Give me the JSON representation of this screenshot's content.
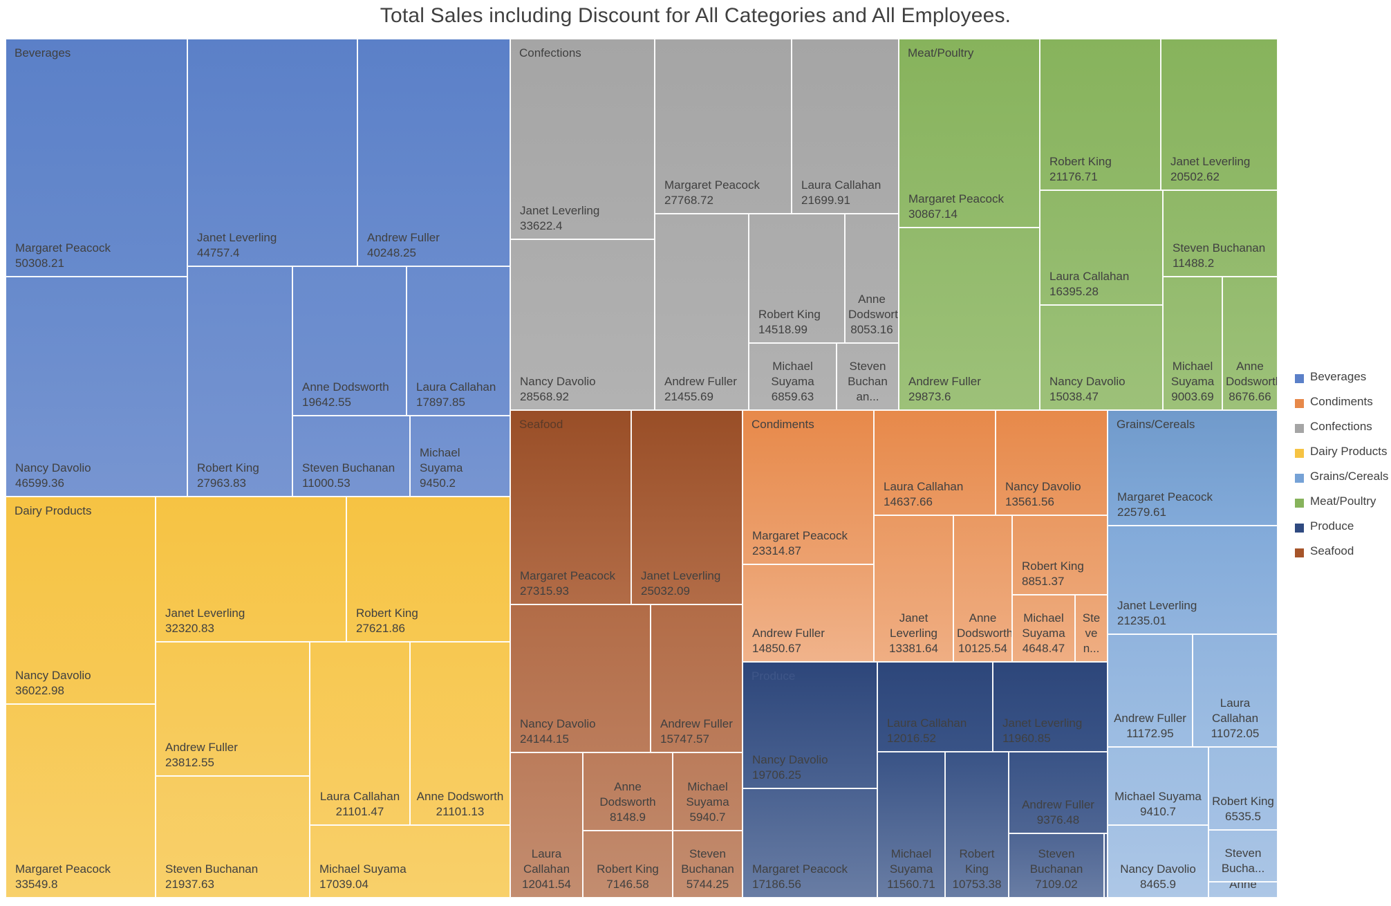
{
  "chart_data": {
    "type": "treemap",
    "title": "Total Sales including Discount for All Categories and All Employees.",
    "legend_position": "right",
    "legend": [
      "Beverages",
      "Condiments",
      "Confections",
      "Dairy Products",
      "Grains/Cereals",
      "Meat/Poultry",
      "Produce",
      "Seafood"
    ],
    "colors": {
      "Beverages": "#5b80c8",
      "Condiments": "#e7894a",
      "Confections": "#a5a5a5",
      "Dairy Products": "#f6c343",
      "Grains/Cereals": "#76a2d6",
      "Meat/Poultry": "#87b35c",
      "Produce": "#2f4a80",
      "Seafood": "#a6552a"
    },
    "categories": [
      {
        "name": "Beverages",
        "items": [
          {
            "name": "Margaret Peacock",
            "value": "50308.21"
          },
          {
            "name": "Nancy Davolio",
            "value": "46599.36"
          },
          {
            "name": "Janet Leverling",
            "value": "44757.4"
          },
          {
            "name": "Andrew Fuller",
            "value": "40248.25"
          },
          {
            "name": "Robert King",
            "value": "27963.83"
          },
          {
            "name": "Anne Dodsworth",
            "value": "19642.55"
          },
          {
            "name": "Laura Callahan",
            "value": "17897.85"
          },
          {
            "name": "Steven Buchanan",
            "value": "11000.53"
          },
          {
            "name": "Michael Suyama",
            "value": "9450.2"
          }
        ]
      },
      {
        "name": "Confections",
        "items": [
          {
            "name": "Janet Leverling",
            "value": "33622.4"
          },
          {
            "name": "Nancy Davolio",
            "value": "28568.92"
          },
          {
            "name": "Margaret Peacock",
            "value": "27768.72"
          },
          {
            "name": "Laura Callahan",
            "value": "21699.91"
          },
          {
            "name": "Andrew Fuller",
            "value": "21455.69"
          },
          {
            "name": "Robert King",
            "value": "14518.99"
          },
          {
            "name": "Anne Dodsworth",
            "value": "8053.16"
          },
          {
            "name": "Michael Suyama",
            "value": "6859.63"
          },
          {
            "name": "Steven Buchanan",
            "value": "",
            "label": "Steven Buchan an..."
          }
        ]
      },
      {
        "name": "Meat/Poultry",
        "items": [
          {
            "name": "Margaret Peacock",
            "value": "30867.14"
          },
          {
            "name": "Andrew Fuller",
            "value": "29873.6"
          },
          {
            "name": "Robert King",
            "value": "21176.71"
          },
          {
            "name": "Janet Leverling",
            "value": "20502.62"
          },
          {
            "name": "Laura Callahan",
            "value": "16395.28"
          },
          {
            "name": "Steven Buchanan",
            "value": "11488.2"
          },
          {
            "name": "Nancy Davolio",
            "value": "15038.47"
          },
          {
            "name": "Michael Suyama",
            "value": "9003.69"
          },
          {
            "name": "Anne Dodsworth",
            "value": "8676.66"
          }
        ]
      },
      {
        "name": "Dairy Products",
        "items": [
          {
            "name": "Nancy Davolio",
            "value": "36022.98"
          },
          {
            "name": "Margaret Peacock",
            "value": "33549.8"
          },
          {
            "name": "Janet Leverling",
            "value": "32320.83"
          },
          {
            "name": "Robert King",
            "value": "27621.86"
          },
          {
            "name": "Andrew Fuller",
            "value": "23812.55"
          },
          {
            "name": "Steven Buchanan",
            "value": "21937.63"
          },
          {
            "name": "Laura Callahan",
            "value": "21101.47"
          },
          {
            "name": "Anne Dodsworth",
            "value": "21101.13"
          },
          {
            "name": "Michael Suyama",
            "value": "17039.04"
          }
        ]
      },
      {
        "name": "Seafood",
        "items": [
          {
            "name": "Margaret Peacock",
            "value": "27315.93"
          },
          {
            "name": "Janet Leverling",
            "value": "25032.09"
          },
          {
            "name": "Nancy Davolio",
            "value": "24144.15"
          },
          {
            "name": "Andrew Fuller",
            "value": "15747.57"
          },
          {
            "name": "Laura Callahan",
            "value": "12041.54"
          },
          {
            "name": "Anne Dodsworth",
            "value": "8148.9"
          },
          {
            "name": "Robert King",
            "value": "7146.58"
          },
          {
            "name": "Michael Suyama",
            "value": "5940.7"
          },
          {
            "name": "Steven Buchanan",
            "value": "5744.25"
          }
        ]
      },
      {
        "name": "Condiments",
        "items": [
          {
            "name": "Margaret Peacock",
            "value": "23314.87"
          },
          {
            "name": "Andrew Fuller",
            "value": "14850.67"
          },
          {
            "name": "Laura Callahan",
            "value": "14637.66"
          },
          {
            "name": "Nancy Davolio",
            "value": "13561.56"
          },
          {
            "name": "Janet Leverling",
            "value": "13381.64"
          },
          {
            "name": "Anne Dodsworth",
            "value": "10125.54"
          },
          {
            "name": "Robert King",
            "value": "8851.37"
          },
          {
            "name": "Michael Suyama",
            "value": "4648.47"
          },
          {
            "name": "Steven Buchanan",
            "value": "",
            "label": "Ste ve n..."
          }
        ]
      },
      {
        "name": "Produce",
        "items": [
          {
            "name": "Nancy Davolio",
            "value": "19706.25"
          },
          {
            "name": "Margaret Peacock",
            "value": "17186.56"
          },
          {
            "name": "Laura Callahan",
            "value": "12016.52"
          },
          {
            "name": "Janet Leverling",
            "value": "11960.85"
          },
          {
            "name": "Michael Suyama",
            "value": "11560.71"
          },
          {
            "name": "Robert King",
            "value": "10753.38"
          },
          {
            "name": "Andrew Fuller",
            "value": "9376.48"
          },
          {
            "name": "Steven Buchanan",
            "value": "7109.02"
          },
          {
            "name": "Anne Dodsworth",
            "value": "",
            "label": ""
          }
        ]
      },
      {
        "name": "Grains/Cereals",
        "items": [
          {
            "name": "Margaret Peacock",
            "value": "22579.61"
          },
          {
            "name": "Janet Leverling",
            "value": "21235.01"
          },
          {
            "name": "Andrew Fuller",
            "value": "11172.95"
          },
          {
            "name": "Laura Callahan",
            "value": "11072.05"
          },
          {
            "name": "Michael Suyama",
            "value": "9410.7"
          },
          {
            "name": "Robert King",
            "value": "6535.5"
          },
          {
            "name": "Nancy Davolio",
            "value": "8465.9"
          },
          {
            "name": "Steven Buchanan",
            "value": "",
            "label": "Steven Bucha..."
          },
          {
            "name": "Anne Dodsworth",
            "value": "",
            "label": "Anne"
          }
        ]
      }
    ]
  }
}
